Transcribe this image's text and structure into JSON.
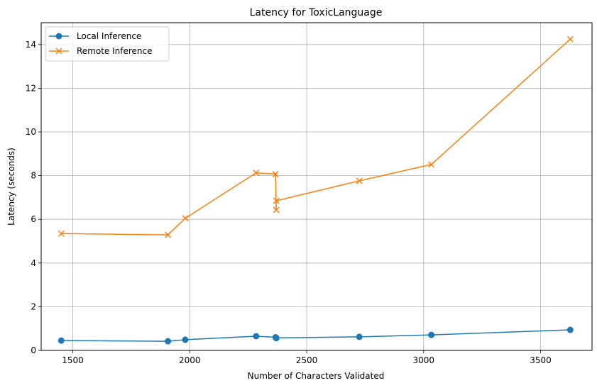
{
  "chart_data": {
    "type": "line",
    "title": "Latency for ToxicLanguage",
    "xlabel": "Number of Characters Validated",
    "ylabel": "Latency (seconds)",
    "xlim": [
      1365,
      3720
    ],
    "ylim": [
      0,
      15
    ],
    "xticks": [
      1500,
      2000,
      2500,
      3000,
      3500
    ],
    "yticks": [
      0,
      2,
      4,
      6,
      8,
      10,
      12,
      14
    ],
    "grid": true,
    "legend_position": "upper left",
    "series": [
      {
        "name": "Local Inference",
        "color": "#1f77b4",
        "marker": "circle",
        "x": [
          1451,
          1907,
          1981,
          2284,
          2367,
          2370,
          2370,
          2725,
          3033,
          3627
        ],
        "y": [
          0.45,
          0.42,
          0.49,
          0.65,
          0.6,
          0.56,
          0.57,
          0.62,
          0.71,
          0.94
        ]
      },
      {
        "name": "Remote Inference",
        "color": "#ff7f0e",
        "marker": "x",
        "x": [
          1451,
          1907,
          1981,
          2284,
          2367,
          2370,
          2370,
          2725,
          3033,
          3627
        ],
        "y": [
          5.35,
          5.29,
          6.05,
          8.13,
          8.07,
          6.43,
          6.85,
          7.76,
          8.51,
          14.25
        ]
      }
    ]
  }
}
